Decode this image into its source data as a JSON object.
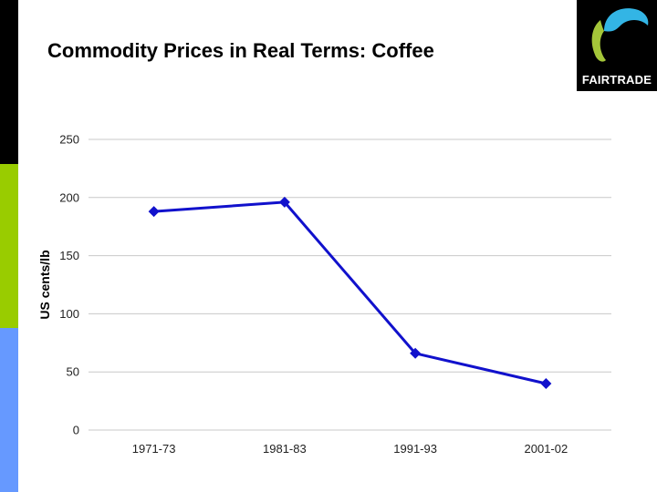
{
  "slide": {
    "title": "Commodity Prices in Real Terms: Coffee"
  },
  "logo": {
    "text": "FAIRTRADE",
    "colors": {
      "background": "#000000",
      "cyan": "#33b5e5",
      "green": "#a4c639",
      "text": "#ffffff"
    }
  },
  "sidebar_colors": [
    "#000000",
    "#99cc00",
    "#6699ff"
  ],
  "chart_data": {
    "type": "line",
    "title": "",
    "xlabel": "",
    "ylabel": "US cents/lb",
    "categories": [
      "1971-73",
      "1981-83",
      "1991-93",
      "2001-02"
    ],
    "series": [
      {
        "values": [
          188,
          196,
          66,
          40
        ],
        "color": "#1111cc",
        "marker": "diamond"
      }
    ],
    "ylim": [
      0,
      250
    ],
    "yticks": [
      0,
      50,
      100,
      150,
      200,
      250
    ],
    "grid": true,
    "legend": "none"
  }
}
